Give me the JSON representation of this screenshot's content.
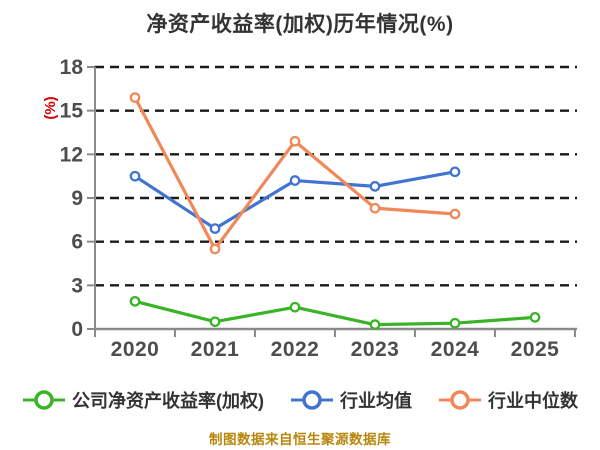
{
  "title": "净资产收益率(加权)历年情况(%)",
  "y_axis": {
    "unit_label": "(%)",
    "unit_label_color": "#d40000",
    "ticks": [
      0,
      3,
      6,
      9,
      12,
      15,
      18
    ],
    "tick_label_color": "#4d4d4d"
  },
  "x_axis": {
    "categories": [
      "2020",
      "2021",
      "2022",
      "2023",
      "2024",
      "2025"
    ],
    "tick_label_color": "#4d4d4d"
  },
  "chart_data": {
    "type": "line",
    "title": "净资产收益率(加权)历年情况(%)",
    "ylabel": "(%)",
    "ylim": [
      0,
      18
    ],
    "y_tick_step": 3,
    "grid": "horizontal-dashed-black",
    "legend_position": "bottom",
    "marker": "circle-white-fill-colored-ring",
    "categories": [
      "2020",
      "2021",
      "2022",
      "2023",
      "2024",
      "2025"
    ],
    "series": [
      {
        "name": "公司净资产收益率(加权)",
        "color": "#3ab327",
        "values": [
          1.9,
          0.5,
          1.5,
          0.3,
          0.4,
          0.8
        ]
      },
      {
        "name": "行业均值",
        "color": "#4173d2",
        "values": [
          10.5,
          6.9,
          10.2,
          9.8,
          10.8,
          null
        ]
      },
      {
        "name": "行业中位数",
        "color": "#f0885a",
        "values": [
          15.9,
          5.5,
          12.9,
          8.3,
          7.9,
          null
        ]
      }
    ]
  },
  "legend": {
    "items": [
      {
        "label": "公司净资产收益率(加权)",
        "color": "#3ab327",
        "icon": "line-circle-marker-icon"
      },
      {
        "label": "行业均值",
        "color": "#4173d2",
        "icon": "line-circle-marker-icon"
      },
      {
        "label": "行业中位数",
        "color": "#f0885a",
        "icon": "line-circle-marker-icon"
      }
    ]
  },
  "caption": {
    "text": "制图数据来自恒生聚源数据库",
    "color": "#b8860b"
  },
  "style_colors": {
    "background": "#ffffff",
    "grid_line": "#1a1a1a",
    "axis_line": "#8a8a8a",
    "title_text": "#333333",
    "legend_text": "#333333"
  }
}
